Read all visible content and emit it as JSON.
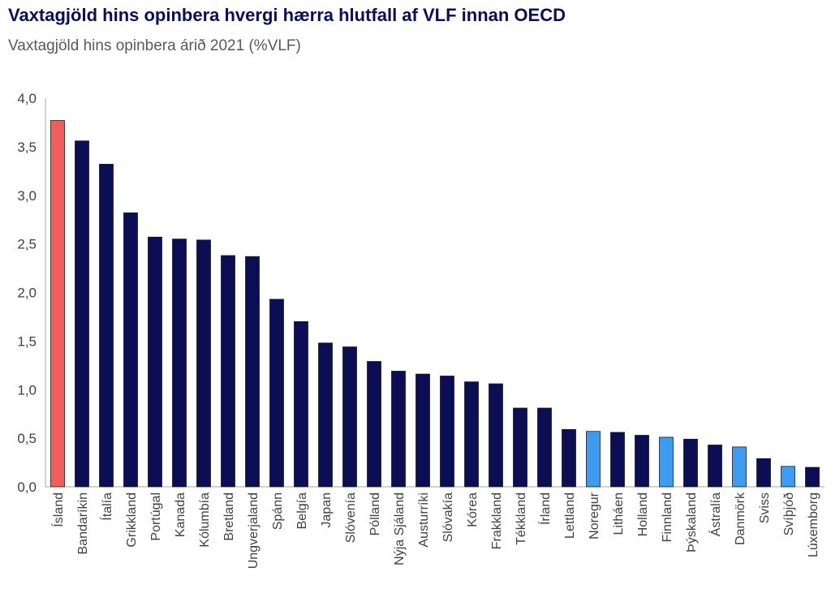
{
  "title": "Vaxtagjöld hins opinbera hvergi hærra hlutfall af VLF innan OECD",
  "subtitle": "Vaxtagjöld hins opinbera árið 2021 (%VLF)",
  "colors": {
    "default": "#0b0d55",
    "iceland": "#f25c5c",
    "nordic": "#3d9cf0"
  },
  "chart_data": {
    "type": "bar",
    "title": "Vaxtagjöld hins opinbera hvergi hærra hlutfall af VLF innan OECD",
    "subtitle": "Vaxtagjöld hins opinbera árið 2021 (%VLF)",
    "xlabel": "",
    "ylabel": "",
    "ylim": [
      0,
      4
    ],
    "yticks": [
      "0,0",
      "0,5",
      "1,0",
      "1,5",
      "2,0",
      "2,5",
      "3,0",
      "3,5",
      "4,0"
    ],
    "grid": false,
    "categories": [
      "Ísland",
      "Bandaríkin",
      "Ítalía",
      "Grikkland",
      "Portúgal",
      "Kanada",
      "Kólumbía",
      "Bretland",
      "Ungverjaland",
      "Spánn",
      "Belgía",
      "Japan",
      "Slóvenía",
      "Pólland",
      "Nýja Sjáland",
      "Austurríki",
      "Slóvakía",
      "Kórea",
      "Frakkland",
      "Tékkland",
      "Írland",
      "Lettland",
      "Noregur",
      "Litháen",
      "Holland",
      "Finnland",
      "Þýskaland",
      "Ástralía",
      "Danmörk",
      "Sviss",
      "Svíþjóð",
      "Lúxemborg"
    ],
    "values": [
      3.77,
      3.56,
      3.32,
      2.82,
      2.57,
      2.55,
      2.54,
      2.38,
      2.37,
      1.93,
      1.7,
      1.48,
      1.44,
      1.29,
      1.19,
      1.16,
      1.14,
      1.08,
      1.06,
      0.81,
      0.81,
      0.59,
      0.57,
      0.56,
      0.53,
      0.51,
      0.49,
      0.43,
      0.41,
      0.29,
      0.21,
      0.2
    ],
    "bar_colors": [
      "iceland",
      "default",
      "default",
      "default",
      "default",
      "default",
      "default",
      "default",
      "default",
      "default",
      "default",
      "default",
      "default",
      "default",
      "default",
      "default",
      "default",
      "default",
      "default",
      "default",
      "default",
      "default",
      "nordic",
      "default",
      "default",
      "nordic",
      "default",
      "default",
      "nordic",
      "default",
      "nordic",
      "default"
    ]
  }
}
